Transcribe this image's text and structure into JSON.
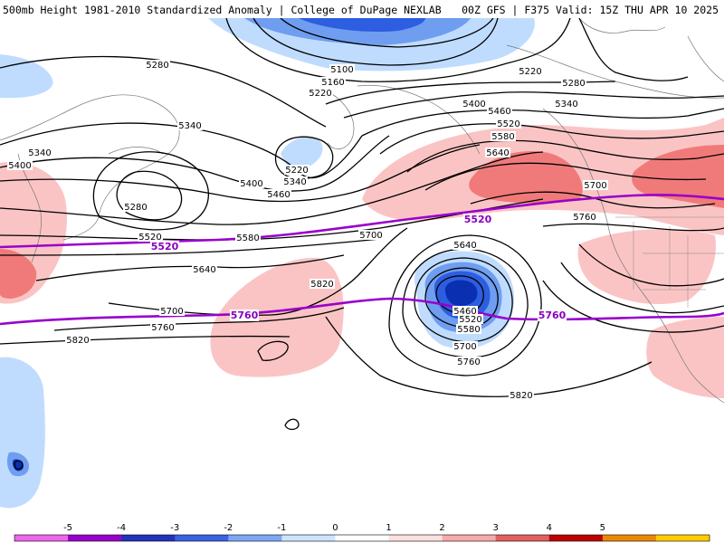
{
  "header": {
    "title": "500mb Height 1981-2010 Standardized Anomaly | College of DuPage NEXLAB",
    "run_info": "00Z GFS | F375 Valid: 15Z THU APR 10 2025"
  },
  "map": {
    "contour_labels": [
      "5280",
      "5340",
      "5340",
      "5400",
      "5280",
      "5520",
      "5580",
      "5640",
      "5700",
      "5760",
      "5820",
      "5100",
      "5160",
      "5220",
      "5220",
      "5340",
      "5400",
      "5460",
      "5700",
      "5820",
      "5640",
      "5460",
      "5520",
      "5580",
      "5700",
      "5760",
      "5820",
      "5220",
      "5280",
      "5340",
      "5400",
      "5460",
      "5520",
      "5580",
      "5640",
      "5700",
      "5760"
    ],
    "climo_labels": [
      "5520",
      "5520",
      "5760",
      "5760"
    ],
    "colors": {
      "neg_light": "#bfdcff",
      "neg_mid": "#6f9df0",
      "neg_strong": "#2d5de0",
      "neg_deep": "#0a2fb0",
      "pos_light": "#fbc4c4",
      "pos_mid": "#f07a7a",
      "pos_strong": "#e03030",
      "climo_line": "#9900cc"
    }
  },
  "legend": {
    "ticks": [
      "-5",
      "-4",
      "-3",
      "-2",
      "-1",
      "0",
      "1",
      "2",
      "3",
      "4",
      "5"
    ],
    "colors": [
      "#ee66ee",
      "#9900cc",
      "#2233bb",
      "#3a62e6",
      "#7ea7f5",
      "#cde4ff",
      "#ffffff",
      "#fde0e0",
      "#f7aaaa",
      "#e06060",
      "#c00000",
      "#ee8800",
      "#ffcc00"
    ]
  }
}
